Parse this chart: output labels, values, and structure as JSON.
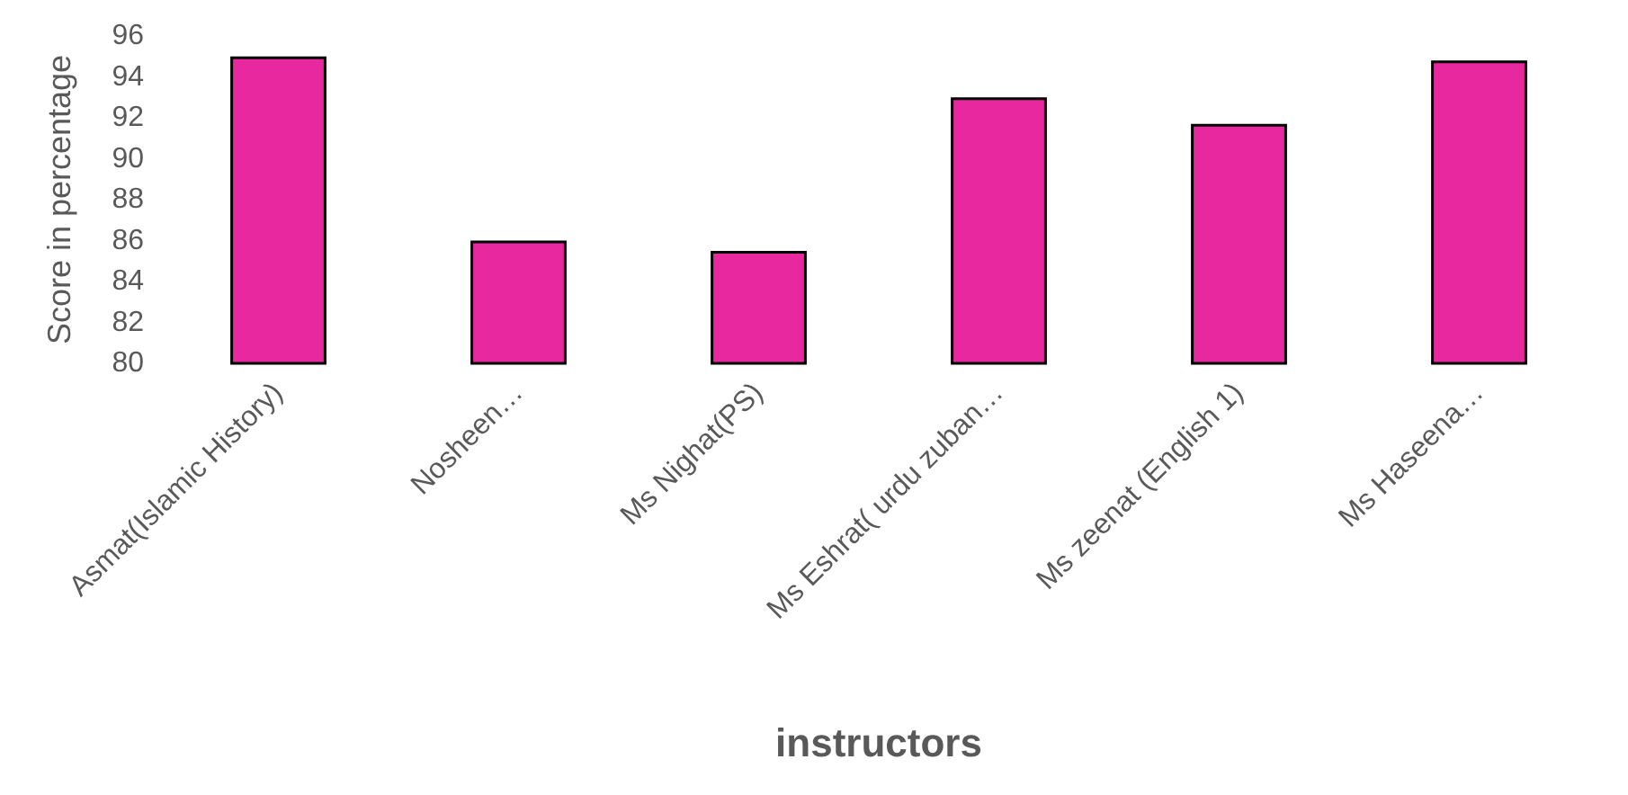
{
  "chart_data": {
    "type": "bar",
    "categories": [
      "Asmat(Islamic History)",
      "Nosheen…",
      "Ms Nighat(PS)",
      "Ms Eshrat( urdu zuban…",
      "Ms zeenat (English 1)",
      "Ms Haseena…"
    ],
    "values": [
      95,
      86,
      85.5,
      93,
      91.7,
      94.8
    ],
    "color": "#e8289f",
    "xlabel": "instructors",
    "ylabel": "Score in percentage",
    "ylim": [
      80,
      96
    ],
    "yticks": [
      80,
      82,
      84,
      86,
      88,
      90,
      92,
      94,
      96
    ],
    "grid": false
  }
}
